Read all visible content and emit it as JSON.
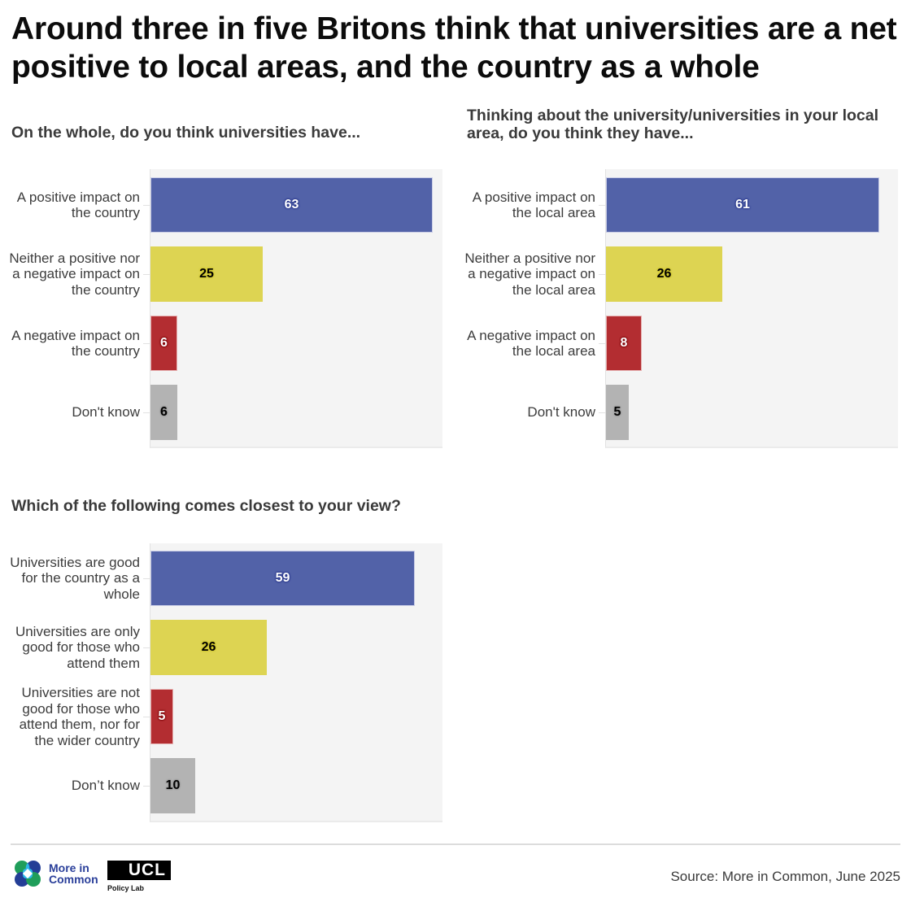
{
  "title": "Around three in five Britons think that universities are a net positive to local areas, and the country as a whole",
  "colors": {
    "positive": "#5262a8",
    "neither": "#ddd452",
    "negative": "#b32d31",
    "dont_know": "#b3b3b3",
    "plot_bg": "#f4f4f4"
  },
  "charts": [
    {
      "question": "On the whole, do you think universities have...",
      "bars": [
        {
          "label": "A positive impact on the country",
          "value": "63"
        },
        {
          "label": "Neither a positive nor a negative impact on the country",
          "value": "25"
        },
        {
          "label": "A negative impact on the country",
          "value": "6"
        },
        {
          "label": "Don't know",
          "value": "6"
        }
      ]
    },
    {
      "question": "Thinking about the university/universities in your local area, do you think they have...",
      "bars": [
        {
          "label": "A positive impact on the local area",
          "value": "61"
        },
        {
          "label": "Neither a positive nor a negative impact on the local area",
          "value": "26"
        },
        {
          "label": "A negative impact on the local area",
          "value": "8"
        },
        {
          "label": "Don't know",
          "value": "5"
        }
      ]
    },
    {
      "question": "Which of the following comes closest to your view?",
      "bars": [
        {
          "label": "Universities are good for the country as a whole",
          "value": "59"
        },
        {
          "label": "Universities are only good for those who attend them",
          "value": "26"
        },
        {
          "label": "Universities are not good for those who attend them, nor for the wider country",
          "value": "5"
        },
        {
          "label": "Don’t know",
          "value": "10"
        }
      ]
    }
  ],
  "footer": {
    "logo_mic": "More in Common",
    "logo_mic_line1": "More in",
    "logo_mic_line2": "Common",
    "logo_ucl": "UCL",
    "logo_ucl_sub": "Policy Lab",
    "source": "Source: More in Common, June 2025"
  },
  "chart_data": [
    {
      "type": "bar",
      "orientation": "horizontal",
      "title": "On the whole, do you think universities have...",
      "categories": [
        "A positive impact on the country",
        "Neither a positive nor a negative impact on the country",
        "A negative impact on the country",
        "Don't know"
      ],
      "values": [
        63,
        25,
        6,
        6
      ],
      "colors": [
        "#5262a8",
        "#ddd452",
        "#b32d31",
        "#b3b3b3"
      ],
      "xlabel": "",
      "ylabel": "",
      "xlim": [
        0,
        65
      ],
      "grid": false,
      "data_labels": true
    },
    {
      "type": "bar",
      "orientation": "horizontal",
      "title": "Thinking about the university/universities in your local area, do you think they have...",
      "categories": [
        "A positive impact on the local area",
        "Neither a positive nor a negative impact on the local area",
        "A negative impact on the local area",
        "Don't know"
      ],
      "values": [
        61,
        26,
        8,
        5
      ],
      "colors": [
        "#5262a8",
        "#ddd452",
        "#b32d31",
        "#b3b3b3"
      ],
      "xlabel": "",
      "ylabel": "",
      "xlim": [
        0,
        65
      ],
      "grid": false,
      "data_labels": true
    },
    {
      "type": "bar",
      "orientation": "horizontal",
      "title": "Which of the following comes closest to your view?",
      "categories": [
        "Universities are good for the country as a whole",
        "Universities are only good for those who attend them",
        "Universities are not good for those who attend them, nor for the wider country",
        "Don’t know"
      ],
      "values": [
        59,
        26,
        5,
        10
      ],
      "colors": [
        "#5262a8",
        "#ddd452",
        "#b32d31",
        "#b3b3b3"
      ],
      "xlabel": "",
      "ylabel": "",
      "xlim": [
        0,
        65
      ],
      "grid": false,
      "data_labels": true
    }
  ]
}
